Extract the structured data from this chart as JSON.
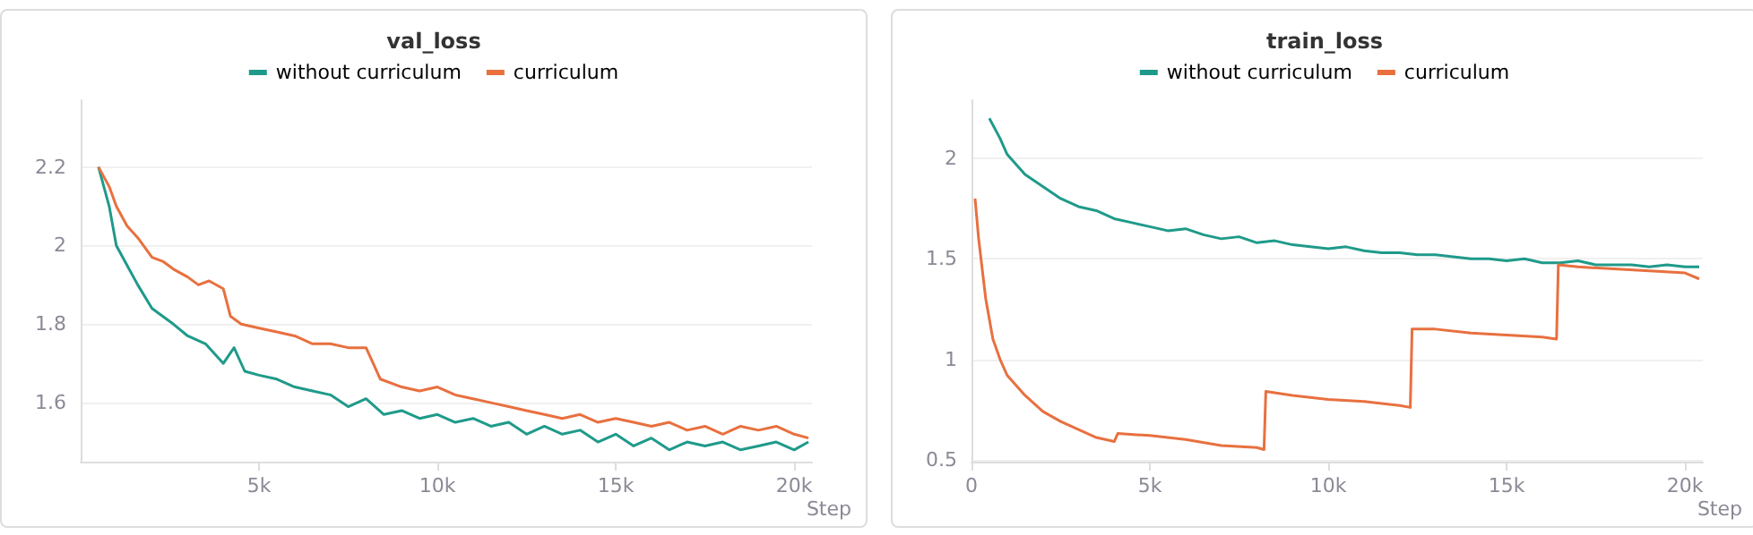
{
  "chart_data": [
    {
      "type": "line",
      "title": "val_loss",
      "xlabel": "Step",
      "legend": "top",
      "grid": "y",
      "marker": "none",
      "line_style": "solid",
      "xlim": [
        0,
        20500
      ],
      "xticks": [
        {
          "value": 5000,
          "label": "5k"
        },
        {
          "value": 10000,
          "label": "10k"
        },
        {
          "value": 15000,
          "label": "15k"
        },
        {
          "value": 20000,
          "label": "20k"
        }
      ],
      "ylim": [
        1.45,
        2.37
      ],
      "yticks": [
        1.6,
        1.8,
        2,
        2.2
      ],
      "series": [
        {
          "name": "without curriculum",
          "color": "#1f9a8a",
          "x": [
            500,
            800,
            1000,
            1300,
            1600,
            2000,
            2300,
            2600,
            3000,
            3500,
            4000,
            4300,
            4600,
            5000,
            5500,
            6000,
            6500,
            7000,
            7500,
            8000,
            8500,
            9000,
            9500,
            10000,
            10500,
            11000,
            11500,
            12000,
            12500,
            13000,
            13500,
            14000,
            14500,
            15000,
            15500,
            16000,
            16500,
            17000,
            17500,
            18000,
            18500,
            19000,
            19500,
            20000,
            20400
          ],
          "values": [
            2.2,
            2.1,
            2.0,
            1.95,
            1.9,
            1.84,
            1.82,
            1.8,
            1.77,
            1.75,
            1.7,
            1.74,
            1.68,
            1.67,
            1.66,
            1.64,
            1.63,
            1.62,
            1.59,
            1.61,
            1.57,
            1.58,
            1.56,
            1.57,
            1.55,
            1.56,
            1.54,
            1.55,
            1.52,
            1.54,
            1.52,
            1.53,
            1.5,
            1.52,
            1.49,
            1.51,
            1.48,
            1.5,
            1.49,
            1.5,
            1.48,
            1.49,
            1.5,
            1.48,
            1.5
          ]
        },
        {
          "name": "curriculum",
          "color": "#e8703f",
          "x": [
            500,
            800,
            1000,
            1300,
            1600,
            2000,
            2300,
            2600,
            3000,
            3300,
            3600,
            4000,
            4200,
            4500,
            5000,
            5500,
            6000,
            6500,
            7000,
            7500,
            8000,
            8200,
            8400,
            9000,
            9500,
            10000,
            10500,
            11000,
            11500,
            12000,
            12500,
            13000,
            13500,
            14000,
            14500,
            15000,
            15500,
            16000,
            16500,
            17000,
            17500,
            18000,
            18500,
            19000,
            19500,
            20000,
            20400
          ],
          "values": [
            2.2,
            2.15,
            2.1,
            2.05,
            2.02,
            1.97,
            1.96,
            1.94,
            1.92,
            1.9,
            1.91,
            1.89,
            1.82,
            1.8,
            1.79,
            1.78,
            1.77,
            1.75,
            1.75,
            1.74,
            1.74,
            1.7,
            1.66,
            1.64,
            1.63,
            1.64,
            1.62,
            1.61,
            1.6,
            1.59,
            1.58,
            1.57,
            1.56,
            1.57,
            1.55,
            1.56,
            1.55,
            1.54,
            1.55,
            1.53,
            1.54,
            1.52,
            1.54,
            1.53,
            1.54,
            1.52,
            1.51
          ]
        }
      ]
    },
    {
      "type": "line",
      "title": "train_loss",
      "xlabel": "Step",
      "legend": "top",
      "grid": "y",
      "marker": "none",
      "line_style": "solid",
      "xlim": [
        0,
        20500
      ],
      "xticks": [
        0,
        {
          "value": 5000,
          "label": "5k"
        },
        {
          "value": 10000,
          "label": "10k"
        },
        {
          "value": 15000,
          "label": "15k"
        },
        {
          "value": 20000,
          "label": "20k"
        }
      ],
      "ylim": [
        0.49,
        2.29
      ],
      "yticks": [
        0.5,
        1,
        1.5,
        2
      ],
      "series": [
        {
          "name": "without curriculum",
          "color": "#1f9a8a",
          "x": [
            500,
            800,
            1000,
            1500,
            2000,
            2500,
            3000,
            3500,
            4000,
            4500,
            5000,
            5500,
            6000,
            6500,
            7000,
            7500,
            8000,
            8500,
            9000,
            9500,
            10000,
            10500,
            11000,
            11500,
            12000,
            12500,
            13000,
            13500,
            14000,
            14500,
            15000,
            15500,
            16000,
            16500,
            17000,
            17500,
            18000,
            18500,
            19000,
            19500,
            20000,
            20400
          ],
          "values": [
            2.2,
            2.1,
            2.02,
            1.92,
            1.86,
            1.8,
            1.76,
            1.74,
            1.7,
            1.68,
            1.66,
            1.64,
            1.65,
            1.62,
            1.6,
            1.61,
            1.58,
            1.59,
            1.57,
            1.56,
            1.55,
            1.56,
            1.54,
            1.53,
            1.53,
            1.52,
            1.52,
            1.51,
            1.5,
            1.5,
            1.49,
            1.5,
            1.48,
            1.48,
            1.49,
            1.47,
            1.47,
            1.47,
            1.46,
            1.47,
            1.46,
            1.46
          ]
        },
        {
          "name": "curriculum",
          "color": "#e8703f",
          "x": [
            100,
            200,
            400,
            600,
            800,
            1000,
            1500,
            2000,
            2500,
            3000,
            3500,
            4000,
            4100,
            5000,
            6000,
            7000,
            8000,
            8200,
            8250,
            9000,
            10000,
            11000,
            12000,
            12300,
            12350,
            13000,
            14000,
            15000,
            16000,
            16400,
            16450,
            17000,
            18000,
            19000,
            20000,
            20400
          ],
          "values": [
            1.8,
            1.6,
            1.3,
            1.1,
            1.0,
            0.92,
            0.82,
            0.74,
            0.69,
            0.65,
            0.61,
            0.59,
            0.63,
            0.62,
            0.6,
            0.57,
            0.56,
            0.55,
            0.84,
            0.82,
            0.8,
            0.79,
            0.77,
            0.76,
            1.15,
            1.15,
            1.13,
            1.12,
            1.11,
            1.1,
            1.47,
            1.46,
            1.45,
            1.44,
            1.43,
            1.4
          ]
        }
      ]
    }
  ]
}
